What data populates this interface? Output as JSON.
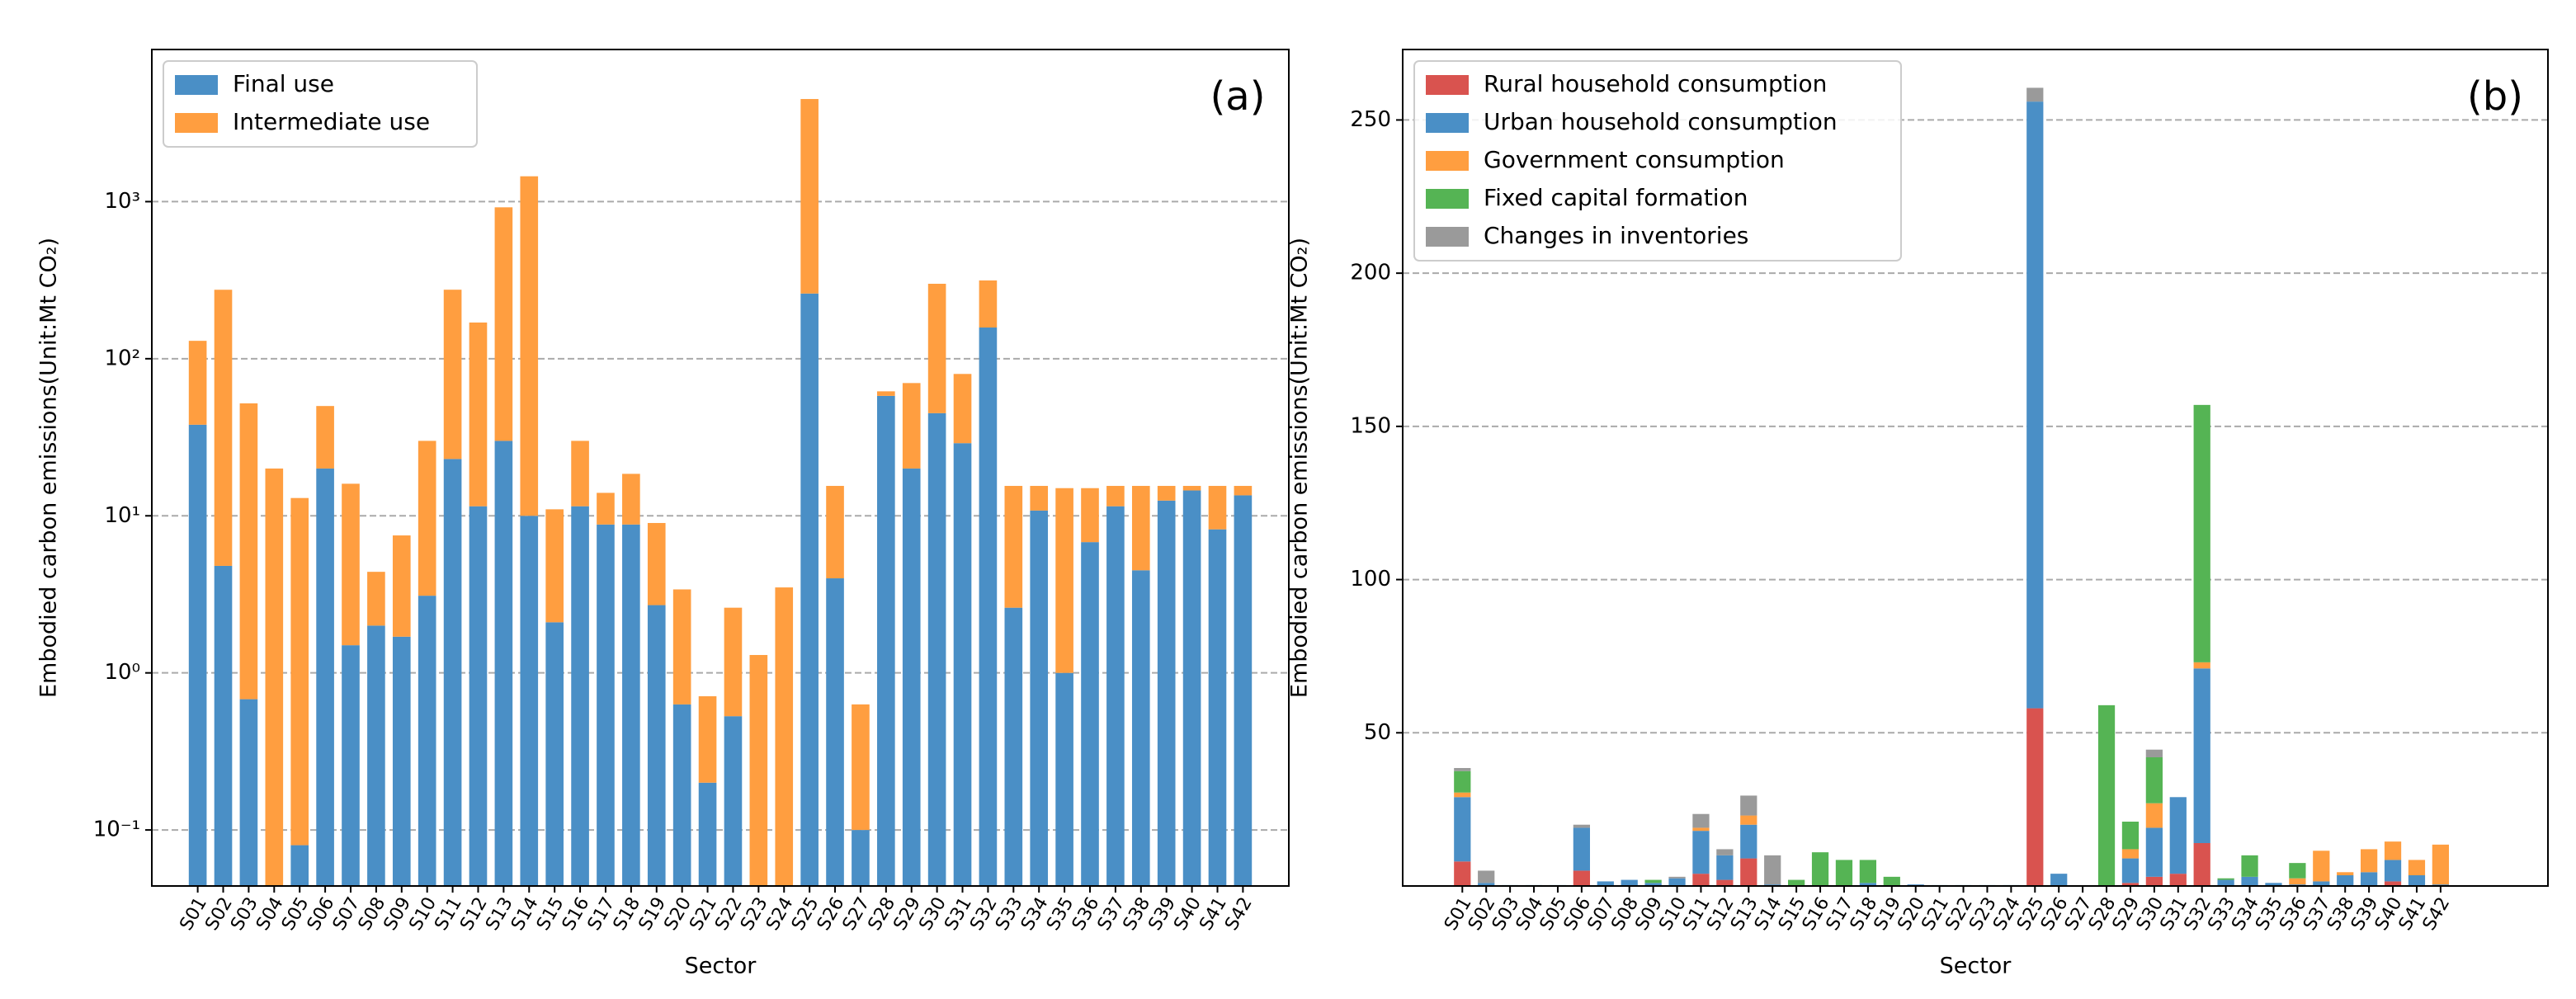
{
  "chart_data": [
    {
      "type": "bar",
      "stacked": true,
      "yscale": "log",
      "grid": true,
      "legend": "upper left",
      "annotation": "(a)",
      "xlabel": "Sector",
      "ylabel": "Embodied carbon emissions(Unit:Mt CO₂)",
      "categories": [
        "S01",
        "S02",
        "S03",
        "S04",
        "S05",
        "S06",
        "S07",
        "S08",
        "S09",
        "S10",
        "S11",
        "S12",
        "S13",
        "S14",
        "S15",
        "S16",
        "S17",
        "S18",
        "S19",
        "S20",
        "S21",
        "S22",
        "S23",
        "S24",
        "S25",
        "S26",
        "S27",
        "S28",
        "S29",
        "S30",
        "S31",
        "S32",
        "S33",
        "S34",
        "S35",
        "S36",
        "S37",
        "S38",
        "S39",
        "S40",
        "S41",
        "S42"
      ],
      "series": [
        {
          "name": "Final use",
          "color": "#4a8fc6",
          "values": [
            38,
            4.8,
            0.68,
            0,
            0.08,
            20,
            1.5,
            2,
            1.7,
            3.1,
            23,
            11.5,
            30,
            10,
            2.1,
            11.5,
            8.8,
            8.8,
            2.7,
            0.63,
            0.2,
            0.53,
            0,
            0,
            260,
            4,
            0.1,
            58,
            20,
            45,
            29,
            158,
            2.6,
            10.8,
            1.0,
            6.8,
            11.5,
            4.5,
            12.5,
            14.5,
            8.2,
            13.5
          ]
        },
        {
          "name": "Intermediate use",
          "color": "#ff9e40",
          "values": [
            92,
            270,
            51.3,
            20,
            12.9,
            30,
            14.5,
            2.4,
            5.8,
            26.9,
            252,
            158.5,
            890,
            1440,
            8.9,
            18.5,
            5.2,
            9.7,
            6.3,
            2.77,
            0.51,
            2.07,
            1.3,
            3.5,
            4240,
            11.5,
            0.53,
            4,
            50,
            255,
            51,
            157,
            12.9,
            4.7,
            14,
            8.2,
            4,
            11,
            3,
            1,
            7.3,
            2
          ]
        }
      ],
      "ylim": [
        0.044,
        9300
      ],
      "yticks": [
        {
          "value": 0.1,
          "label": "10⁻¹"
        },
        {
          "value": 1,
          "label": "10⁰"
        },
        {
          "value": 10,
          "label": "10¹"
        },
        {
          "value": 100,
          "label": "10²"
        },
        {
          "value": 1000,
          "label": "10³"
        }
      ]
    },
    {
      "type": "bar",
      "stacked": true,
      "yscale": "linear",
      "grid": true,
      "legend": "upper left",
      "annotation": "(b)",
      "xlabel": "Sector",
      "ylabel": "Embodied carbon emissions(Unit:Mt CO₂)",
      "categories": [
        "S01",
        "S02",
        "S03",
        "S04",
        "S05",
        "S06",
        "S07",
        "S08",
        "S09",
        "S10",
        "S11",
        "S12",
        "S13",
        "S14",
        "S15",
        "S16",
        "S17",
        "S18",
        "S19",
        "S20",
        "S21",
        "S22",
        "S23",
        "S24",
        "S25",
        "S26",
        "S27",
        "S28",
        "S29",
        "S30",
        "S31",
        "S32",
        "S33",
        "S34",
        "S35",
        "S36",
        "S37",
        "S38",
        "S39",
        "S40",
        "S41",
        "S42"
      ],
      "series": [
        {
          "name": "Rural household consumption",
          "color": "#d9534f",
          "values": [
            8,
            0,
            0,
            0,
            0,
            5,
            0,
            0,
            0,
            0,
            4,
            2,
            9,
            0,
            0,
            0,
            0,
            0,
            0,
            0,
            0,
            0,
            0,
            0,
            58,
            0,
            0,
            0,
            1,
            3,
            4,
            14,
            0,
            0,
            0,
            0,
            0,
            0,
            0,
            1.5,
            0,
            0
          ]
        },
        {
          "name": "Urban household consumption",
          "color": "#4a8fc6",
          "values": [
            21,
            1,
            0.3,
            0.3,
            0.3,
            14,
            1.5,
            2,
            1,
            2.5,
            14,
            8,
            11,
            0.5,
            0,
            0,
            0,
            1,
            0,
            0.5,
            0.3,
            0.3,
            0.3,
            0.3,
            198,
            4,
            0,
            0,
            8,
            16,
            25,
            57,
            2,
            3,
            1,
            0.5,
            1.5,
            3.5,
            4.5,
            7,
            3.5,
            0.5
          ]
        },
        {
          "name": "Government consumption",
          "color": "#ff9e40",
          "values": [
            1.5,
            0,
            0,
            0,
            0,
            0,
            0,
            0,
            0,
            0,
            1,
            0,
            3,
            0,
            0,
            0,
            0,
            0,
            0,
            0,
            0,
            0,
            0,
            0,
            0,
            0,
            0,
            0,
            3,
            8,
            0,
            2,
            0,
            0,
            0,
            2,
            10,
            1,
            7.5,
            6,
            5,
            13
          ]
        },
        {
          "name": "Fixed capital formation",
          "color": "#55b454",
          "values": [
            7,
            0,
            0,
            0,
            0,
            0,
            0,
            0,
            1,
            0,
            0,
            0,
            0,
            0,
            2,
            11,
            8.5,
            7.5,
            3,
            0,
            0,
            0,
            0,
            0,
            0,
            0,
            0,
            59,
            9,
            15,
            0,
            84,
            0.5,
            7,
            0,
            5,
            0,
            0,
            0,
            0,
            0,
            0
          ]
        },
        {
          "name": "Changes in inventories",
          "color": "#9a9a9a",
          "values": [
            1,
            4,
            0,
            0,
            0,
            1,
            0,
            0,
            0,
            0.5,
            4.5,
            2,
            6.5,
            9.5,
            0,
            0,
            0,
            0,
            0,
            0,
            0,
            0,
            0,
            0,
            4.5,
            0,
            0,
            0,
            0,
            2.5,
            0,
            0,
            0,
            0,
            0,
            0,
            0,
            0,
            0,
            0,
            0,
            0
          ]
        }
      ],
      "ylim": [
        0,
        273
      ],
      "yticks": [
        50,
        100,
        150,
        200,
        250
      ]
    }
  ]
}
